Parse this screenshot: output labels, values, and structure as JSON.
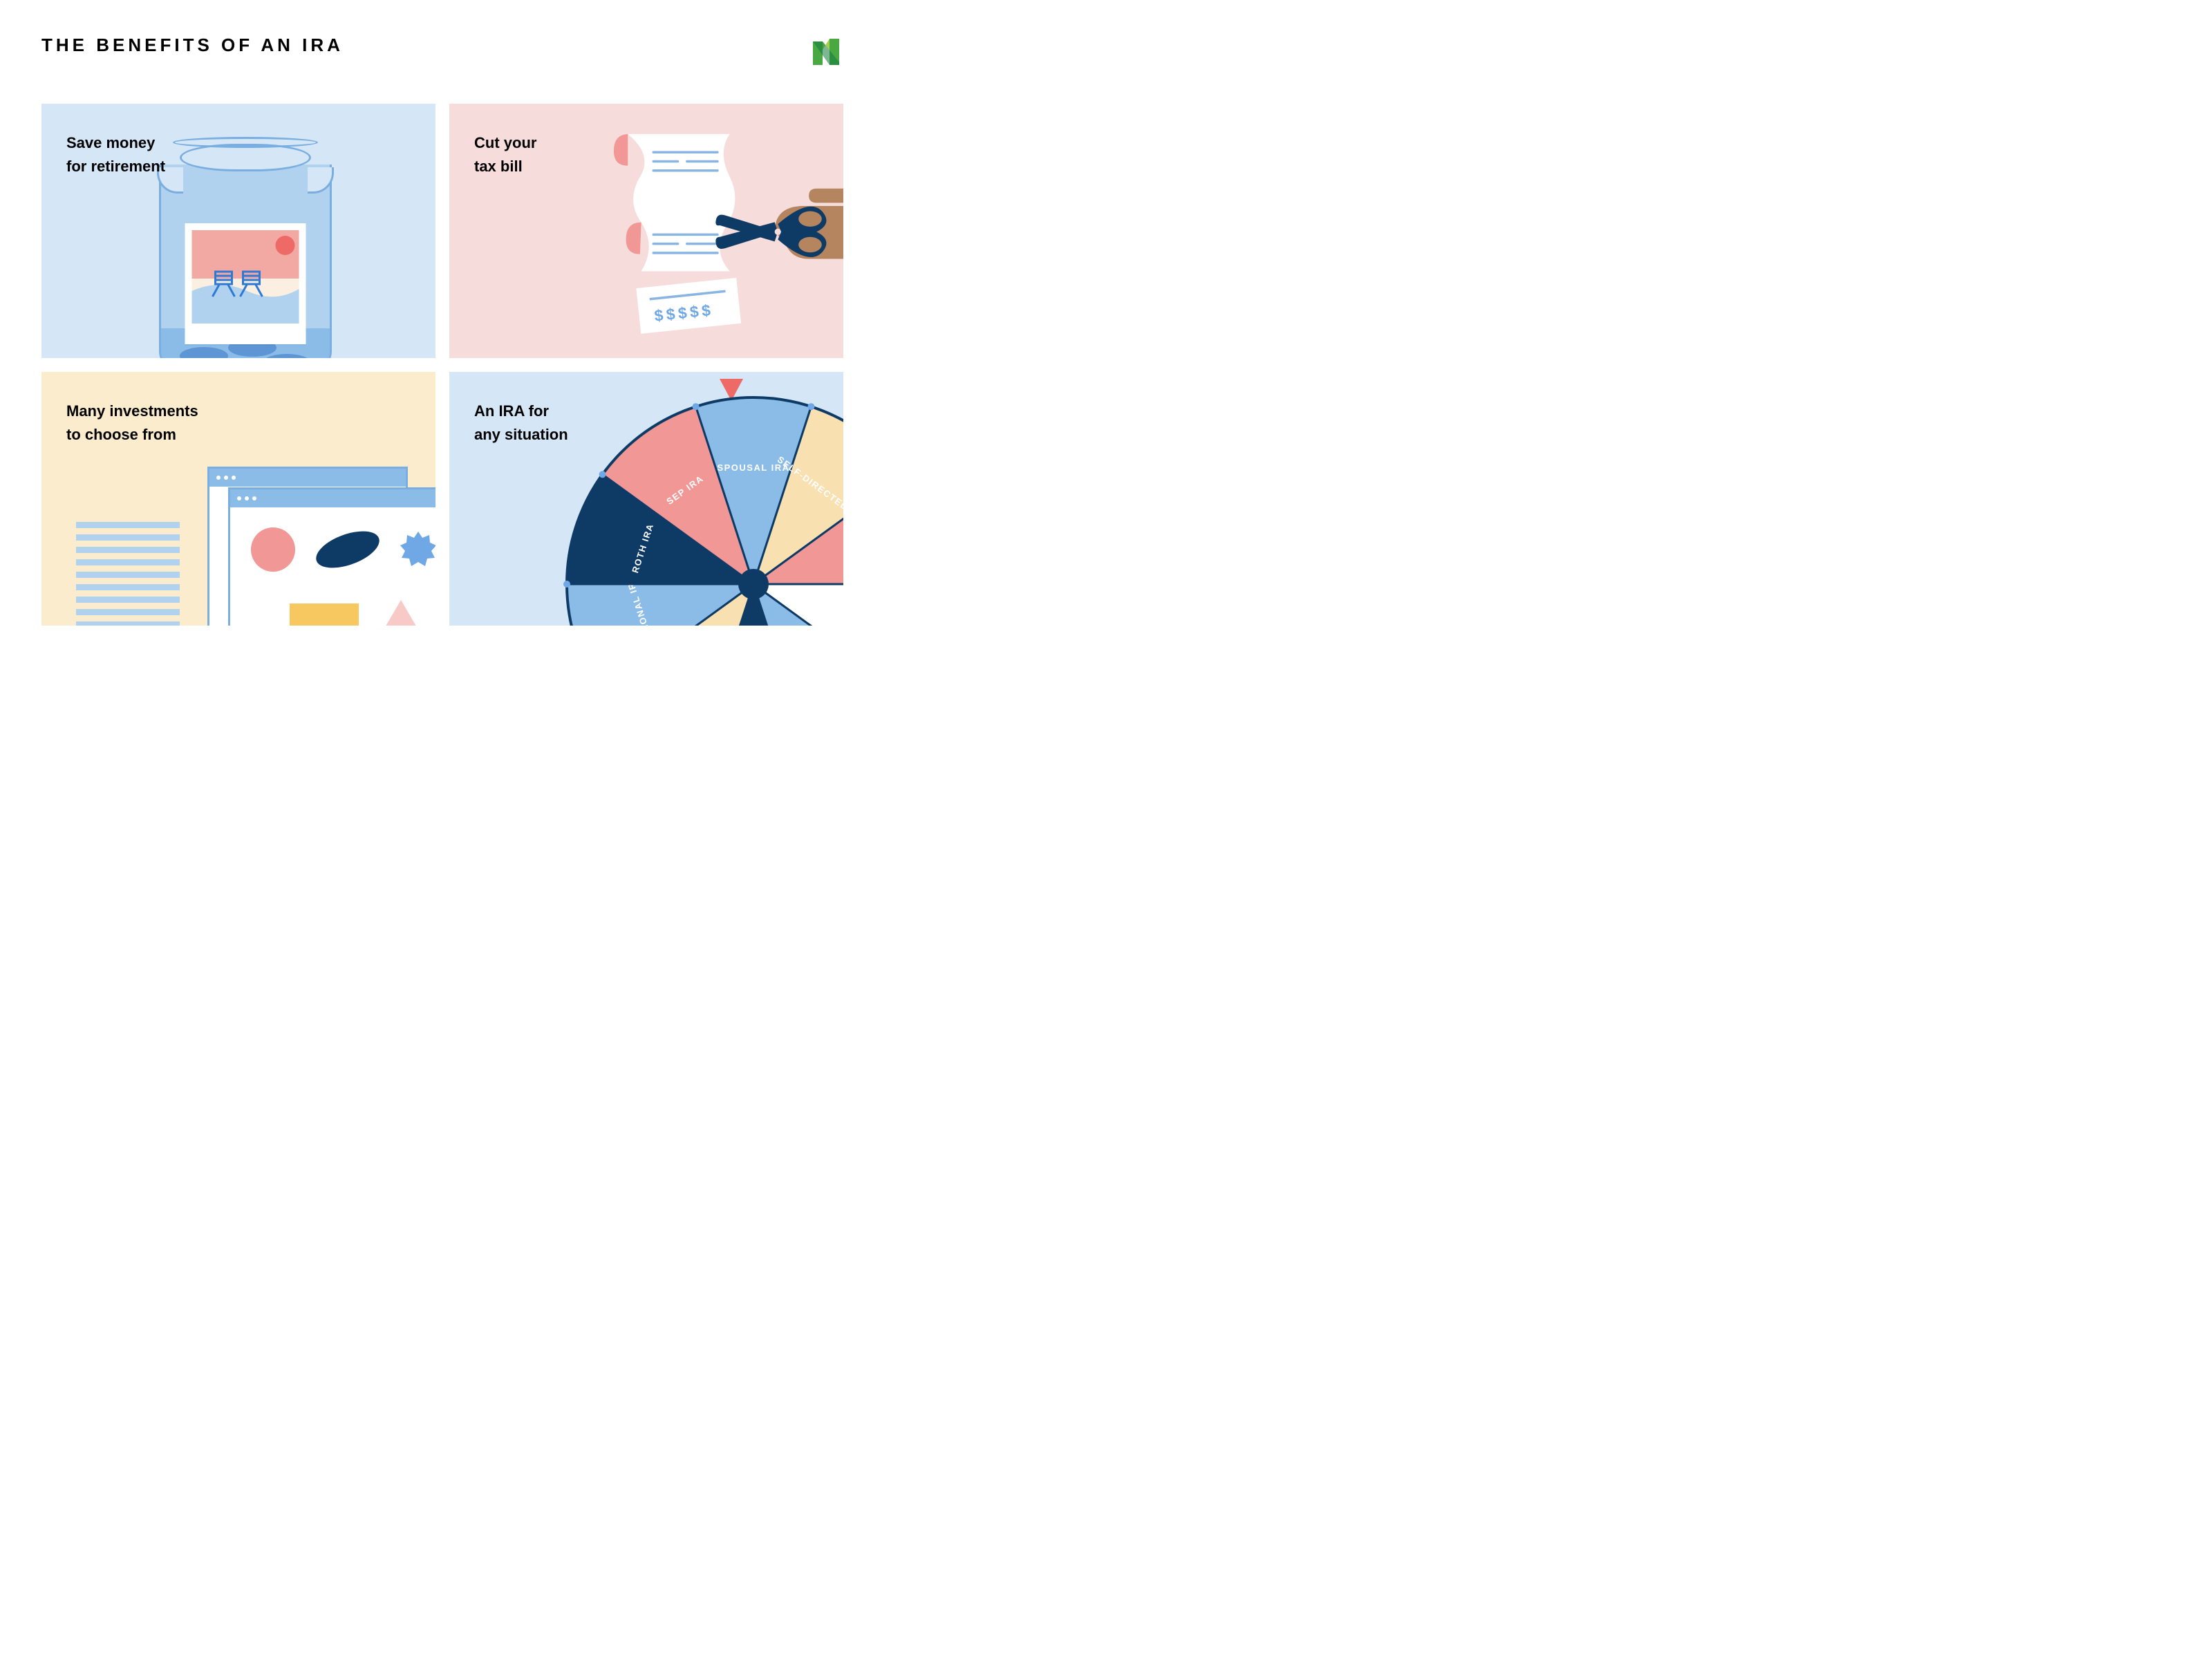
{
  "title": "THE BENEFITS OF AN IRA",
  "logo": {
    "color1": "#4aa843",
    "color2": "#a6d04b",
    "color3": "#117a3a"
  },
  "cards": {
    "save": {
      "line1": "Save money",
      "line2": "for retirement",
      "bg": "#d5e7f7",
      "jar": {
        "body": "#b0d2ef",
        "outline": "#7aaee0",
        "water": "#8bbce8",
        "coin": "#5e95d4"
      },
      "polaroid": {
        "sky": "#f2a9a4",
        "sand": "#faefe0",
        "wave": "#b0d2ef",
        "sun": "#ee6a66",
        "chairs": "#2d79d6"
      }
    },
    "tax": {
      "line1": "Cut your",
      "line2": "tax bill",
      "bg": "#f7dcdc",
      "receipt": {
        "paper": "#ffffff",
        "outline": "#89b5e3",
        "curl": "#f19795",
        "line": "#89b5e3",
        "dollar": "#6fa8e5"
      },
      "scissors": {
        "handle": "#0e3a66",
        "blade": "#0e3a66",
        "hand": "#b58560"
      },
      "dollar_text": "$$$$$"
    },
    "invest": {
      "line1": "Many investments",
      "line2": "to choose from",
      "bg": "#fbecce",
      "browser": {
        "border": "#7aaee0",
        "bar": "#8bbce8",
        "dot": "#ffffff"
      },
      "shapes": {
        "circle": "#f19795",
        "ellipse": "#0e3a66",
        "burst": "#6fa8e5",
        "rect": "#f6c85f",
        "triangle": "#f7c9c7"
      },
      "paper_line": "#b0d2ef"
    },
    "types": {
      "line1": "An IRA for",
      "line2": "any situation",
      "bg": "#d5e7f7",
      "pointer": "#ee6a66",
      "wheel": {
        "border": "#0e3a66",
        "pin": "#6fa8e5",
        "slices": [
          {
            "label": "SPOUSAL IRA",
            "color": "#8bbce8"
          },
          {
            "label": "SELF-DIRECTED IRA",
            "color": "#f8e0b0"
          },
          {
            "label": "",
            "color": "#f19795"
          },
          {
            "label": "",
            "color": "#ffffff"
          },
          {
            "label": "",
            "color": "#8bbce8"
          },
          {
            "label": "",
            "color": "#0e3a66"
          },
          {
            "label": "",
            "color": "#f8e0b0"
          },
          {
            "label": "TRADITIONAL IRA",
            "color": "#8bbce8"
          },
          {
            "label": "ROTH IRA",
            "color": "#0e3a66"
          },
          {
            "label": "SEP IRA",
            "color": "#f19795"
          }
        ]
      }
    }
  }
}
